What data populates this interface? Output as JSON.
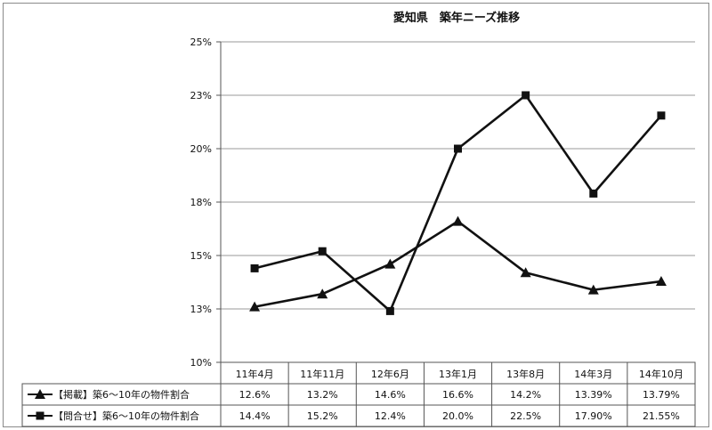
{
  "chart_data": {
    "type": "line",
    "title": "愛知県　築年ニーズ推移",
    "categories": [
      "11年4月",
      "11年11月",
      "12年6月",
      "13年1月",
      "13年8月",
      "14年3月",
      "14年10月"
    ],
    "y_tick_labels": [
      "10%",
      "13%",
      "15%",
      "18%",
      "20%",
      "23%",
      "25%"
    ],
    "ylim": [
      10,
      25
    ],
    "grid": true,
    "legend": "data-table-left",
    "series": [
      {
        "name": "【掲載】築6～10年の物件割合",
        "marker": "triangle",
        "values": [
          12.6,
          13.2,
          14.6,
          16.6,
          14.2,
          13.39,
          13.79
        ],
        "labels": [
          "12.6%",
          "13.2%",
          "14.6%",
          "16.6%",
          "14.2%",
          "13.39%",
          "13.79%"
        ],
        "color": "#111111"
      },
      {
        "name": "【問合せ】築6～10年の物件割合",
        "marker": "square",
        "values": [
          14.4,
          15.2,
          12.4,
          20.0,
          22.5,
          17.9,
          21.55
        ],
        "labels": [
          "14.4%",
          "15.2%",
          "12.4%",
          "20.0%",
          "22.5%",
          "17.90%",
          "21.55%"
        ],
        "color": "#111111"
      }
    ]
  }
}
